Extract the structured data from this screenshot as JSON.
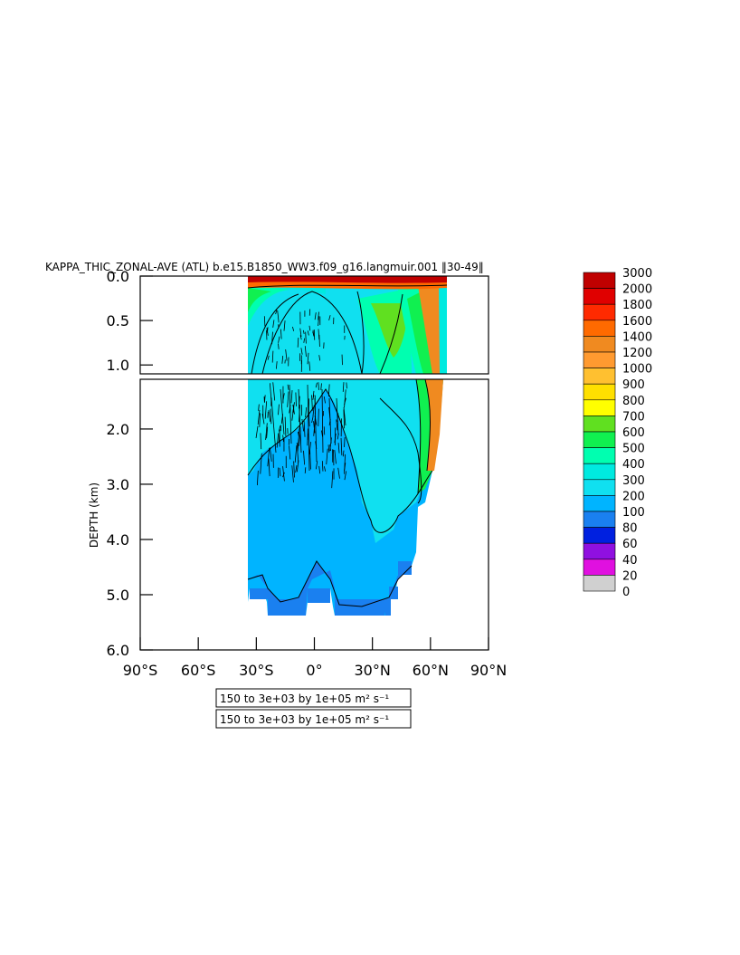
{
  "chart_data": {
    "type": "heatmap",
    "title": "KAPPA_THIC_ZONAL-AVE (ATL) b.e15.B1850_WW3.f09_g16.langmuir.001 ‖30-49‖",
    "ylabel": "DEPTH (km)",
    "xlabel": "",
    "x_ticks": [
      "90°S",
      "60°S",
      "30°S",
      "0°",
      "30°N",
      "60°N",
      "90°N"
    ],
    "y_ticks_top": [
      "0.0",
      "0.5",
      "1.0"
    ],
    "y_ticks_bottom": [
      "2.0",
      "3.0",
      "4.0",
      "5.0",
      "6.0"
    ],
    "xlim": [
      -90,
      90
    ],
    "ylim_top_km": [
      0,
      1.1
    ],
    "ylim_bottom_km": [
      1.1,
      6.0
    ],
    "colorbar": {
      "labels": [
        "3000",
        "2000",
        "1800",
        "1600",
        "1400",
        "1200",
        "1000",
        "900",
        "800",
        "700",
        "600",
        "500",
        "400",
        "300",
        "200",
        "100",
        "80",
        "60",
        "40",
        "20",
        "0"
      ],
      "colors": [
        "#c00000",
        "#e00000",
        "#ff2a00",
        "#ff6a00",
        "#f08a20",
        "#ff9a30",
        "#ffc030",
        "#ffe000",
        "#ffff00",
        "#60e020",
        "#10f050",
        "#00ffb0",
        "#00eae0",
        "#10e0f0",
        "#00b4ff",
        "#1a80f0",
        "#0020e0",
        "#9010e0",
        "#e010e0",
        "#d0d0d0",
        "#707070"
      ]
    },
    "notes": [
      "150 to 3e+03 by 1e+05 m² s⁻¹",
      "150 to 3e+03 by 1e+05 m² s⁻¹"
    ]
  }
}
